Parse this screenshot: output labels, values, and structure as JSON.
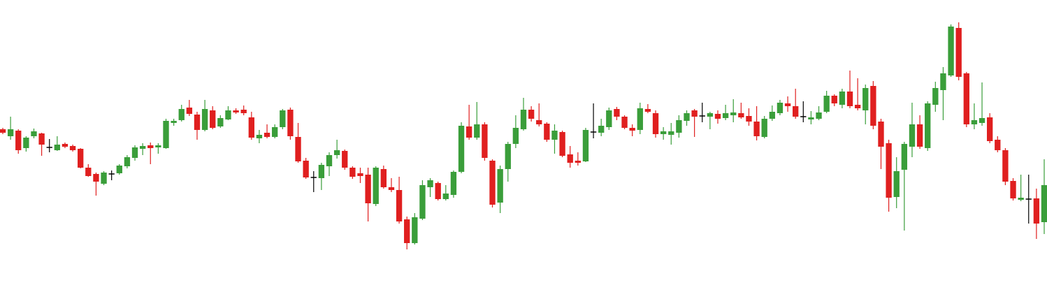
{
  "chart_data": {
    "type": "candlestick",
    "ylim": [
      0,
      428
    ],
    "colors": {
      "up": "#3a9e3a",
      "down": "#e01f1f",
      "flat": "#000000"
    },
    "open": [
      243,
      233,
      241,
      216,
      233,
      237,
      217,
      213,
      222,
      219,
      215,
      188,
      179,
      165,
      179,
      180,
      190,
      202,
      215,
      220,
      217,
      216,
      252,
      256,
      274,
      264,
      242,
      270,
      247,
      257,
      270,
      271,
      260,
      230,
      238,
      232,
      246,
      271,
      232,
      198,
      174,
      173,
      190,
      206,
      212,
      188,
      180,
      178,
      136,
      186,
      160,
      156,
      114,
      80,
      115,
      160,
      166,
      143,
      149,
      182,
      247,
      231,
      250,
      198,
      138,
      186,
      222,
      243,
      271,
      256,
      251,
      228,
      239,
      207,
      198,
      197,
      239,
      238,
      246,
      272,
      261,
      245,
      242,
      272,
      266,
      236,
      235,
      238,
      255,
      270,
      262,
      261,
      265,
      259,
      263,
      266,
      262,
      254,
      232,
      258,
      266,
      280,
      276,
      261,
      257,
      258,
      268,
      291,
      278,
      297,
      278,
      270,
      305,
      254,
      223,
      146,
      185,
      218,
      250,
      216,
      278,
      299,
      320,
      388,
      323,
      250,
      252,
      260,
      228,
      213,
      169,
      142,
      143,
      144,
      110
    ],
    "high": [
      245,
      261,
      243,
      233,
      244,
      238,
      229,
      233,
      224,
      221,
      216,
      193,
      181,
      183,
      184,
      193,
      206,
      220,
      223,
      224,
      223,
      258,
      258,
      278,
      285,
      268,
      285,
      276,
      263,
      276,
      273,
      277,
      268,
      242,
      250,
      250,
      272,
      274,
      252,
      202,
      183,
      195,
      210,
      228,
      214,
      190,
      188,
      188,
      190,
      191,
      173,
      175,
      118,
      123,
      170,
      173,
      168,
      163,
      184,
      253,
      278,
      282,
      253,
      200,
      191,
      225,
      263,
      288,
      276,
      280,
      253,
      250,
      241,
      219,
      210,
      245,
      280,
      258,
      274,
      275,
      263,
      250,
      281,
      279,
      270,
      246,
      252,
      263,
      270,
      272,
      281,
      268,
      270,
      278,
      286,
      281,
      273,
      276,
      262,
      277,
      285,
      290,
      301,
      283,
      269,
      276,
      298,
      293,
      301,
      327,
      316,
      307,
      312,
      258,
      228,
      203,
      225,
      281,
      263,
      283,
      311,
      332,
      393,
      396,
      325,
      280,
      310,
      266,
      233,
      216,
      173,
      178,
      178,
      158,
      200
    ],
    "low": [
      236,
      228,
      208,
      211,
      230,
      205,
      210,
      212,
      216,
      211,
      187,
      175,
      148,
      163,
      170,
      178,
      187,
      198,
      206,
      193,
      208,
      215,
      248,
      254,
      262,
      228,
      240,
      243,
      245,
      256,
      265,
      263,
      228,
      223,
      230,
      230,
      243,
      228,
      195,
      172,
      153,
      156,
      176,
      201,
      185,
      172,
      166,
      111,
      133,
      158,
      153,
      108,
      71,
      78,
      113,
      146,
      141,
      141,
      145,
      180,
      228,
      228,
      198,
      131,
      123,
      168,
      216,
      241,
      254,
      247,
      225,
      208,
      203,
      188,
      191,
      196,
      230,
      233,
      242,
      256,
      243,
      233,
      236,
      266,
      231,
      228,
      221,
      231,
      248,
      232,
      253,
      243,
      251,
      256,
      253,
      258,
      248,
      227,
      230,
      255,
      263,
      268,
      258,
      253,
      250,
      256,
      266,
      276,
      273,
      273,
      270,
      250,
      243,
      186,
      125,
      130,
      98,
      203,
      215,
      212,
      268,
      256,
      318,
      313,
      246,
      243,
      248,
      223,
      210,
      163,
      141,
      140,
      108,
      86,
      93
    ],
    "close": [
      238,
      243,
      213,
      231,
      240,
      221,
      217,
      221,
      218,
      213,
      188,
      176,
      168,
      181,
      179,
      191,
      203,
      217,
      219,
      216,
      220,
      255,
      255,
      272,
      265,
      242,
      272,
      245,
      259,
      270,
      267,
      266,
      231,
      235,
      232,
      246,
      270,
      233,
      197,
      174,
      174,
      192,
      206,
      213,
      188,
      175,
      176,
      137,
      188,
      160,
      156,
      111,
      80,
      117,
      163,
      170,
      143,
      151,
      182,
      248,
      231,
      250,
      202,
      135,
      186,
      222,
      245,
      271,
      258,
      250,
      228,
      241,
      205,
      195,
      195,
      242,
      239,
      248,
      270,
      261,
      245,
      241,
      273,
      268,
      236,
      240,
      240,
      256,
      266,
      261,
      262,
      266,
      258,
      266,
      267,
      260,
      254,
      233,
      258,
      268,
      281,
      276,
      261,
      261,
      260,
      267,
      291,
      280,
      297,
      276,
      273,
      302,
      248,
      218,
      145,
      183,
      222,
      250,
      218,
      280,
      302,
      323,
      390,
      318,
      250,
      256,
      259,
      226,
      213,
      168,
      144,
      145,
      143,
      108,
      163
    ]
  }
}
